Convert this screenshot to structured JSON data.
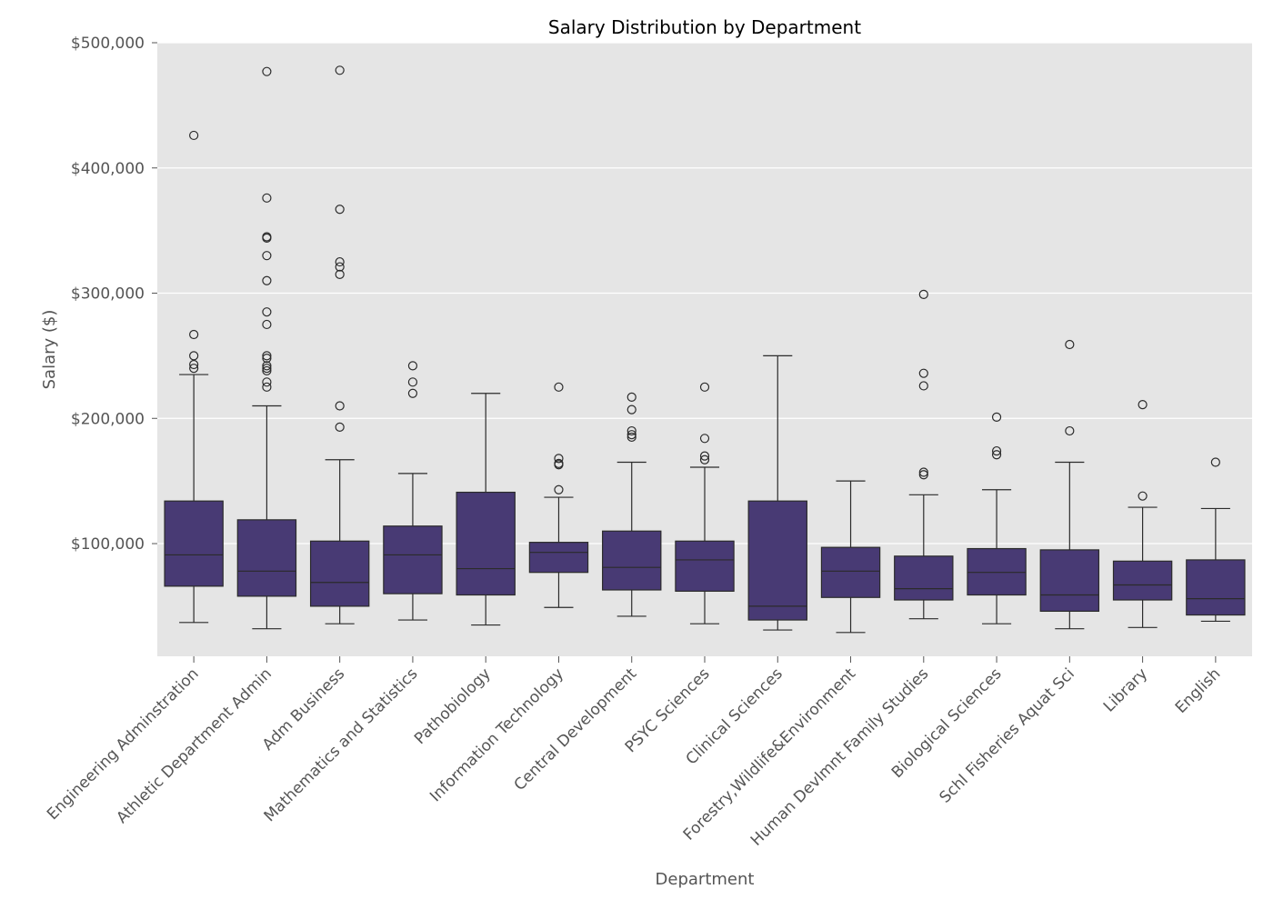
{
  "chart_data": {
    "type": "box",
    "title": "Salary Distribution by Department",
    "xlabel": "Department",
    "ylabel": "Salary ($)",
    "ylim": [
      10000,
      500000
    ],
    "yticks": [
      100000,
      200000,
      300000,
      400000,
      500000
    ],
    "ytick_labels": [
      "$100,000",
      "$200,000",
      "$300,000",
      "$400,000",
      "$500,000"
    ],
    "grid": true,
    "colors": {
      "box_fill": "#483a74",
      "line": "#2b2b2b",
      "plot_background": "#e5e5e5",
      "grid": "#ffffff"
    },
    "categories": [
      "Engineering Adminstration",
      "Athletic Department Admin",
      "Adm Business",
      "Mathematics and Statistics",
      "Pathobiology",
      "Information Technology",
      "Central Development",
      "PSYC Sciences",
      "Clinical Sciences",
      "Forestry,Wildlife&Environment",
      "Human Devlmnt Family Studies",
      "Biological Sciences",
      "Schl Fisheries Aquat Sci",
      "Library",
      "English"
    ],
    "boxes": [
      {
        "whislo": 37000,
        "q1": 66000,
        "med": 91000,
        "q3": 134000,
        "whishi": 235000,
        "fliers": [
          240000,
          243000,
          250000,
          267000,
          426000
        ]
      },
      {
        "whislo": 32000,
        "q1": 58000,
        "med": 78000,
        "q3": 119000,
        "whishi": 210000,
        "fliers": [
          225000,
          229000,
          238000,
          240000,
          242000,
          248000,
          250000,
          275000,
          285000,
          310000,
          330000,
          344000,
          345000,
          376000,
          477000
        ]
      },
      {
        "whislo": 36000,
        "q1": 50000,
        "med": 69000,
        "q3": 102000,
        "whishi": 167000,
        "fliers": [
          193000,
          210000,
          315000,
          321000,
          325000,
          367000,
          478000
        ]
      },
      {
        "whislo": 39000,
        "q1": 60000,
        "med": 91000,
        "q3": 114000,
        "whishi": 156000,
        "fliers": [
          220000,
          229000,
          242000
        ]
      },
      {
        "whislo": 35000,
        "q1": 59000,
        "med": 80000,
        "q3": 141000,
        "whishi": 220000,
        "fliers": []
      },
      {
        "whislo": 49000,
        "q1": 77000,
        "med": 93000,
        "q3": 101000,
        "whishi": 137000,
        "fliers": [
          143000,
          163000,
          164000,
          168000,
          225000
        ]
      },
      {
        "whislo": 42000,
        "q1": 63000,
        "med": 81000,
        "q3": 110000,
        "whishi": 165000,
        "fliers": [
          185000,
          187000,
          190000,
          207000,
          217000
        ]
      },
      {
        "whislo": 36000,
        "q1": 62000,
        "med": 87000,
        "q3": 102000,
        "whishi": 161000,
        "fliers": [
          167000,
          170000,
          184000,
          225000
        ]
      },
      {
        "whislo": 31000,
        "q1": 39000,
        "med": 50000,
        "q3": 134000,
        "whishi": 250000,
        "fliers": []
      },
      {
        "whislo": 29000,
        "q1": 57000,
        "med": 78000,
        "q3": 97000,
        "whishi": 150000,
        "fliers": []
      },
      {
        "whislo": 40000,
        "q1": 55000,
        "med": 64000,
        "q3": 90000,
        "whishi": 139000,
        "fliers": [
          155000,
          157000,
          226000,
          236000,
          299000
        ]
      },
      {
        "whislo": 36000,
        "q1": 59000,
        "med": 77000,
        "q3": 96000,
        "whishi": 143000,
        "fliers": [
          171000,
          174000,
          201000
        ]
      },
      {
        "whislo": 32000,
        "q1": 46000,
        "med": 59000,
        "q3": 95000,
        "whishi": 165000,
        "fliers": [
          190000,
          259000
        ]
      },
      {
        "whislo": 33000,
        "q1": 55000,
        "med": 67000,
        "q3": 86000,
        "whishi": 129000,
        "fliers": [
          138000,
          211000
        ]
      },
      {
        "whislo": 38000,
        "q1": 43000,
        "med": 56000,
        "q3": 87000,
        "whishi": 128000,
        "fliers": [
          165000
        ]
      }
    ]
  }
}
